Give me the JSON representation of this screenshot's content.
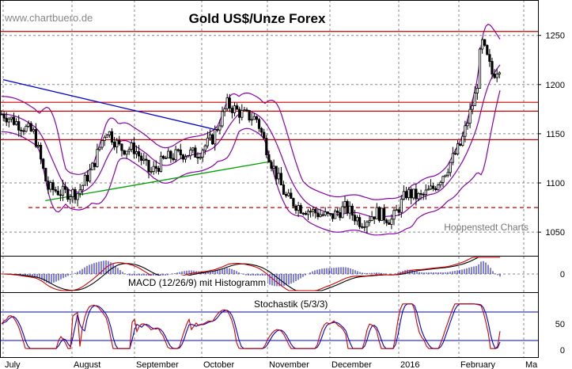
{
  "title": "Gold US$/Unze Forex",
  "watermark": "www.chartbuero.de",
  "credit": "Hoppenstedt Charts",
  "macd_label": "MACD (12/26/9) mit Histogramm",
  "stoch_label": "Stochastik (5/3/3)",
  "colors": {
    "price": "#000000",
    "bollinger": "#8800aa",
    "resistance": "#cc0000",
    "support_dotted": "#cc0000",
    "down_trend": "#0000cc",
    "up_trend": "#00a000",
    "macd_line": "#cc0000",
    "signal_line": "#000000",
    "histogram": "#0000cc",
    "stoch_k": "#cc0000",
    "stoch_d": "#0000cc",
    "grid": "#888888"
  },
  "chart_data": [
    {
      "type": "candlestick",
      "title": "Gold US$/Unze Forex",
      "x_months": [
        "July",
        "August",
        "September",
        "October",
        "November",
        "December",
        "2016",
        "February",
        "Ma"
      ],
      "ylim": [
        1030,
        1290
      ],
      "yticks": [
        1050,
        1100,
        1150,
        1200,
        1250
      ],
      "grid": true,
      "horizontal_lines": [
        1254,
        1182,
        1173,
        1144
      ],
      "dotted_line": 1075,
      "trend_lines": [
        {
          "name": "down",
          "from": [
            "Jul 1",
            1205
          ],
          "to": [
            "Oct 8",
            1154
          ]
        },
        {
          "name": "up",
          "from": [
            "Jul 20",
            1082
          ],
          "to": [
            "Nov 3",
            1122
          ]
        }
      ],
      "series": [
        {
          "name": "close",
          "x": [
            "Jul 1",
            "Jul 8",
            "Jul 15",
            "Jul 21",
            "Jul 28",
            "Aug 4",
            "Aug 11",
            "Aug 18",
            "Aug 25",
            "Sep 1",
            "Sep 8",
            "Sep 15",
            "Sep 22",
            "Sep 29",
            "Oct 6",
            "Oct 13",
            "Oct 20",
            "Oct 27",
            "Nov 3",
            "Nov 10",
            "Nov 17",
            "Nov 24",
            "Dec 1",
            "Dec 8",
            "Dec 15",
            "Dec 22",
            "Dec 29",
            "Jan 5",
            "Jan 12",
            "Jan 19",
            "Jan 26",
            "Feb 2",
            "Feb 9",
            "Feb 11",
            "Feb 16",
            "Feb 23"
          ],
          "values": [
            1170,
            1160,
            1150,
            1095,
            1090,
            1090,
            1115,
            1155,
            1135,
            1135,
            1110,
            1125,
            1130,
            1130,
            1145,
            1180,
            1170,
            1165,
            1120,
            1085,
            1075,
            1070,
            1065,
            1075,
            1060,
            1070,
            1062,
            1090,
            1085,
            1095,
            1115,
            1140,
            1195,
            1245,
            1210,
            1230
          ]
        }
      ]
    },
    {
      "type": "line",
      "title": "MACD (12/26/9) mit Histogramm",
      "yticks": [
        0
      ],
      "grid": true
    },
    {
      "type": "line",
      "title": "Stochastik (5/3/3)",
      "ylim": [
        0,
        100
      ],
      "yticks": [
        0,
        50
      ],
      "horizontal_lines": [
        20,
        80
      ],
      "grid": true
    }
  ]
}
